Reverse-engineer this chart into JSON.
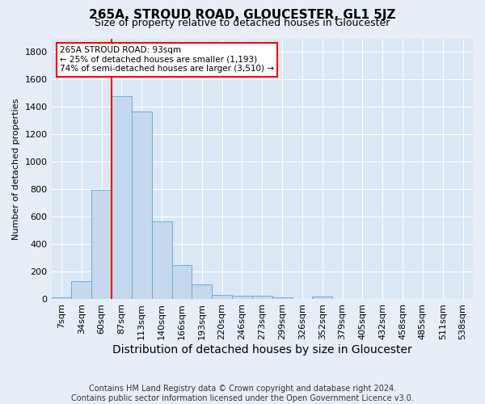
{
  "title": "265A, STROUD ROAD, GLOUCESTER, GL1 5JZ",
  "subtitle": "Size of property relative to detached houses in Gloucester",
  "xlabel": "Distribution of detached houses by size in Gloucester",
  "ylabel": "Number of detached properties",
  "footer_line1": "Contains HM Land Registry data © Crown copyright and database right 2024.",
  "footer_line2": "Contains public sector information licensed under the Open Government Licence v3.0.",
  "bar_labels": [
    "7sqm",
    "34sqm",
    "60sqm",
    "87sqm",
    "113sqm",
    "140sqm",
    "166sqm",
    "193sqm",
    "220sqm",
    "246sqm",
    "273sqm",
    "299sqm",
    "326sqm",
    "352sqm",
    "379sqm",
    "405sqm",
    "432sqm",
    "458sqm",
    "485sqm",
    "511sqm",
    "538sqm"
  ],
  "bar_values": [
    15,
    130,
    795,
    1480,
    1370,
    565,
    250,
    110,
    35,
    28,
    28,
    15,
    0,
    18,
    0,
    0,
    0,
    0,
    0,
    0,
    0
  ],
  "bar_color": "#c5d8ee",
  "bar_edgecolor": "#6baed6",
  "ylim": [
    0,
    1900
  ],
  "yticks": [
    0,
    200,
    400,
    600,
    800,
    1000,
    1200,
    1400,
    1600,
    1800
  ],
  "red_line_bin": 3,
  "annotation_text_line1": "265A STROUD ROAD: 93sqm",
  "annotation_text_line2": "← 25% of detached houses are smaller (1,193)",
  "annotation_text_line3": "74% of semi-detached houses are larger (3,510) →",
  "background_color": "#e8eef7",
  "plot_bg_color": "#dce7f5",
  "title_fontsize": 11,
  "subtitle_fontsize": 9,
  "ylabel_fontsize": 8,
  "xlabel_fontsize": 10,
  "tick_fontsize": 8,
  "annotation_fontsize": 7.5,
  "footer_fontsize": 7
}
